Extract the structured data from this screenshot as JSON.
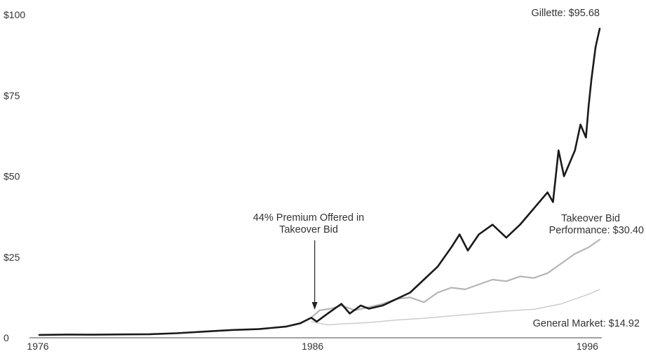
{
  "chart_data": {
    "type": "line",
    "title": "",
    "xlabel": "",
    "ylabel": "",
    "xlim": [
      1976,
      1996.4
    ],
    "ylim": [
      0,
      100
    ],
    "x_ticks": [
      1976,
      1986,
      1996
    ],
    "x_tick_labels": [
      "1976",
      "1986",
      "1996"
    ],
    "y_ticks": [
      0,
      25,
      50,
      75,
      100
    ],
    "y_tick_labels": [
      "0",
      "$25",
      "$50",
      "$75",
      "$100"
    ],
    "grid": false,
    "legend": "none",
    "series": [
      {
        "name": "Gillette",
        "color": "#1a1a1a",
        "points": [
          [
            1976.0,
            0.9
          ],
          [
            1977.0,
            1.0
          ],
          [
            1978.0,
            0.95
          ],
          [
            1979.0,
            1.05
          ],
          [
            1980.0,
            1.1
          ],
          [
            1981.0,
            1.4
          ],
          [
            1982.0,
            1.9
          ],
          [
            1983.0,
            2.4
          ],
          [
            1984.0,
            2.7
          ],
          [
            1985.0,
            3.5
          ],
          [
            1985.5,
            4.5
          ],
          [
            1985.9,
            6.2
          ],
          [
            1986.1,
            5.0
          ],
          [
            1986.5,
            7.5
          ],
          [
            1987.0,
            10.5
          ],
          [
            1987.3,
            7.5
          ],
          [
            1987.7,
            10.0
          ],
          [
            1988.0,
            9.0
          ],
          [
            1988.5,
            10.0
          ],
          [
            1989.0,
            12.0
          ],
          [
            1989.5,
            14.0
          ],
          [
            1990.0,
            18.0
          ],
          [
            1990.5,
            22.0
          ],
          [
            1991.0,
            28.0
          ],
          [
            1991.3,
            32.0
          ],
          [
            1991.6,
            27.0
          ],
          [
            1992.0,
            32.0
          ],
          [
            1992.5,
            35.0
          ],
          [
            1993.0,
            31.0
          ],
          [
            1993.5,
            35.0
          ],
          [
            1994.0,
            40.0
          ],
          [
            1994.5,
            45.0
          ],
          [
            1994.7,
            42.0
          ],
          [
            1994.9,
            58.0
          ],
          [
            1995.1,
            50.0
          ],
          [
            1995.5,
            58.0
          ],
          [
            1995.7,
            66.0
          ],
          [
            1995.9,
            62.0
          ],
          [
            1996.0,
            72.0
          ],
          [
            1996.1,
            80.0
          ],
          [
            1996.25,
            90.0
          ],
          [
            1996.4,
            95.68
          ]
        ]
      },
      {
        "name": "Takeover Bid Performance",
        "color": "#b5b5b5",
        "points": [
          [
            1985.9,
            6.2
          ],
          [
            1986.2,
            8.5
          ],
          [
            1986.6,
            9.0
          ],
          [
            1987.0,
            10.0
          ],
          [
            1987.5,
            8.5
          ],
          [
            1988.0,
            9.5
          ],
          [
            1988.5,
            10.5
          ],
          [
            1989.0,
            12.0
          ],
          [
            1989.5,
            12.5
          ],
          [
            1990.0,
            11.0
          ],
          [
            1990.5,
            14.0
          ],
          [
            1991.0,
            15.5
          ],
          [
            1991.5,
            15.0
          ],
          [
            1992.0,
            16.5
          ],
          [
            1992.5,
            18.0
          ],
          [
            1993.0,
            17.5
          ],
          [
            1993.5,
            19.0
          ],
          [
            1994.0,
            18.5
          ],
          [
            1994.5,
            20.0
          ],
          [
            1995.0,
            23.0
          ],
          [
            1995.5,
            26.0
          ],
          [
            1996.0,
            28.0
          ],
          [
            1996.4,
            30.4
          ]
        ]
      },
      {
        "name": "General Market",
        "color": "#cccccc",
        "points": [
          [
            1985.9,
            5.0
          ],
          [
            1986.5,
            4.0
          ],
          [
            1987.0,
            4.3
          ],
          [
            1988.0,
            4.7
          ],
          [
            1989.0,
            5.5
          ],
          [
            1990.0,
            6.0
          ],
          [
            1991.0,
            6.8
          ],
          [
            1992.0,
            7.5
          ],
          [
            1993.0,
            8.3
          ],
          [
            1994.0,
            8.8
          ],
          [
            1995.0,
            10.5
          ],
          [
            1995.5,
            12.0
          ],
          [
            1996.0,
            13.5
          ],
          [
            1996.4,
            14.92
          ]
        ]
      }
    ],
    "annotations": {
      "gillette": "Gillette: $95.68",
      "takeover_line1": "Takeover Bid",
      "takeover_line2": "Performance: $30.40",
      "market": "General Market: $14.92",
      "premium_line1": "44% Premium Offered in",
      "premium_line2": "Takeover Bid",
      "premium_x": 1986
    }
  }
}
